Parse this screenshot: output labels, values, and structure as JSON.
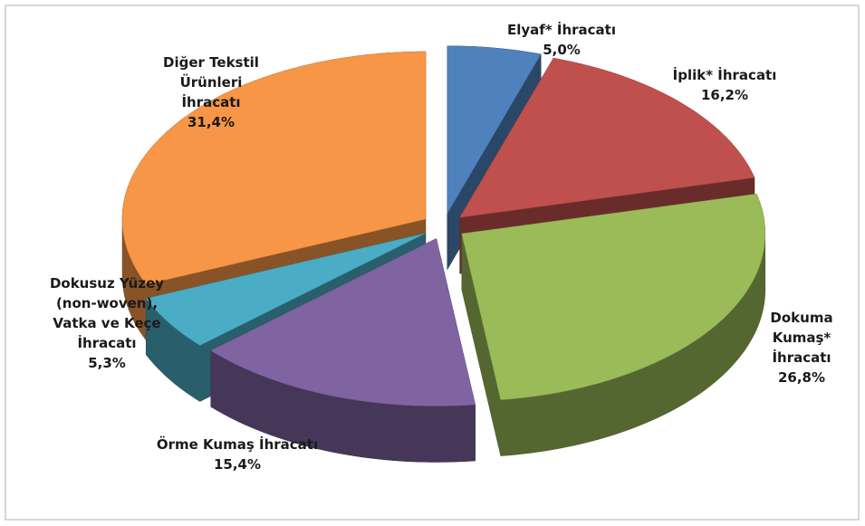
{
  "chart_data": {
    "type": "pie3d",
    "categories": [
      "Elyaf* İhracatı",
      "İplik* İhracatı",
      "Dokuma Kumaş* İhracatı",
      "Örme Kumaş İhracatı",
      "Dokusuz Yüzey (non-woven), Vatka ve Keçe İhracatı",
      "Diğer Tekstil Ürünleri İhracatı"
    ],
    "values": [
      5.0,
      16.2,
      26.8,
      15.4,
      5.3,
      31.4
    ],
    "value_labels": [
      "5,0%",
      "16,2%",
      "26,8%",
      "15,4%",
      "5,3%",
      "31,4%"
    ],
    "colors": [
      "#4f81bd",
      "#c0504d",
      "#9bbb59",
      "#8064a2",
      "#4bacc6",
      "#f79646"
    ]
  }
}
